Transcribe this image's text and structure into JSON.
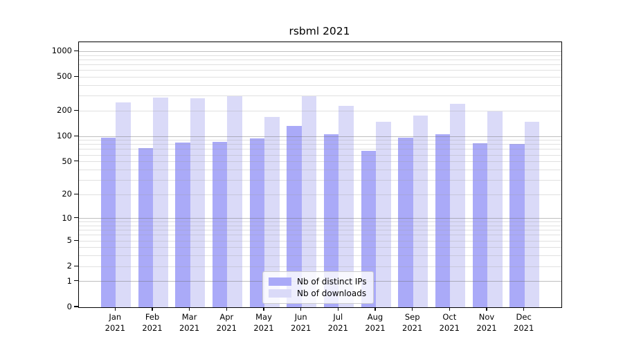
{
  "chart_data": {
    "type": "bar",
    "title": "rsbml 2021",
    "months": [
      "Jan",
      "Feb",
      "Mar",
      "Apr",
      "May",
      "Jun",
      "Jul",
      "Aug",
      "Sep",
      "Oct",
      "Nov",
      "Dec"
    ],
    "year": "2021",
    "series": [
      {
        "name": "Nb of distinct IPs",
        "color": "#aaaaf8",
        "values": [
          96,
          72,
          85,
          86,
          95,
          134,
          106,
          67,
          97,
          107,
          83,
          82
        ]
      },
      {
        "name": "Nb of downloads",
        "color": "#dadaf8",
        "values": [
          250,
          285,
          280,
          298,
          169,
          296,
          230,
          148,
          175,
          242,
          197,
          149
        ]
      }
    ],
    "y_ticks": [
      0,
      1,
      2,
      5,
      10,
      20,
      50,
      100,
      200,
      500,
      1000
    ],
    "y_scale": "log1p",
    "ylim": [
      0,
      1285
    ],
    "grid": true,
    "legend_position": "lower center",
    "axis_color": "#000000",
    "major_grid_color": "rgba(110,110,110,0.45)",
    "minor_grid_color": "rgba(160,160,160,0.32)",
    "background": "#ffffff"
  }
}
